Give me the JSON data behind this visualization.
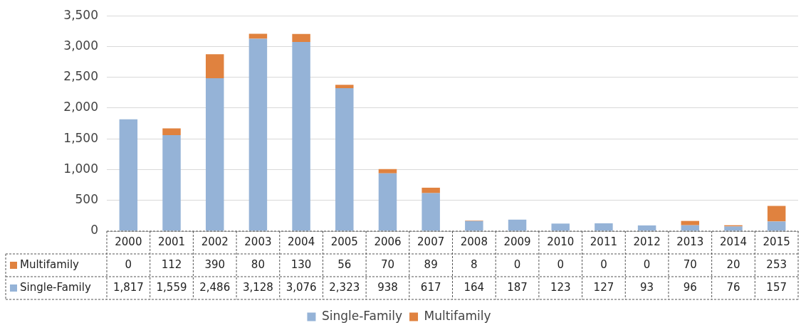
{
  "chart_data": {
    "type": "bar",
    "stacked": true,
    "grid": "y",
    "legend": "bottom",
    "categories": [
      "2000",
      "2001",
      "2002",
      "2003",
      "2004",
      "2005",
      "2006",
      "2007",
      "2008",
      "2009",
      "2010",
      "2011",
      "2012",
      "2013",
      "2014",
      "2015"
    ],
    "series": [
      {
        "name": "Single-Family",
        "color": "#95b3d7",
        "values": [
          1817,
          1559,
          2486,
          3128,
          3076,
          2323,
          938,
          617,
          164,
          187,
          123,
          127,
          93,
          96,
          76,
          157
        ],
        "value_labels": [
          "1,817",
          "1,559",
          "2,486",
          "3,128",
          "3,076",
          "2,323",
          "938",
          "617",
          "164",
          "187",
          "123",
          "127",
          "93",
          "96",
          "76",
          "157"
        ]
      },
      {
        "name": "Multifamily",
        "color": "#e0823f",
        "values": [
          0,
          112,
          390,
          80,
          130,
          56,
          70,
          89,
          8,
          0,
          0,
          0,
          0,
          70,
          20,
          253
        ],
        "value_labels": [
          "0",
          "112",
          "390",
          "80",
          "130",
          "56",
          "70",
          "89",
          "8",
          "0",
          "0",
          "0",
          "0",
          "70",
          "20",
          "253"
        ]
      }
    ],
    "ylim": [
      0,
      3500
    ],
    "yticks": [
      0,
      500,
      {
        "value": 1000,
        "label": "1,000"
      },
      {
        "value": 1500,
        "label": "1,500"
      },
      {
        "value": 2000,
        "label": "2,000"
      },
      {
        "value": 2500,
        "label": "2,500"
      },
      {
        "value": 3000,
        "label": "3,000"
      },
      {
        "value": 3500,
        "label": "3,500"
      }
    ]
  }
}
